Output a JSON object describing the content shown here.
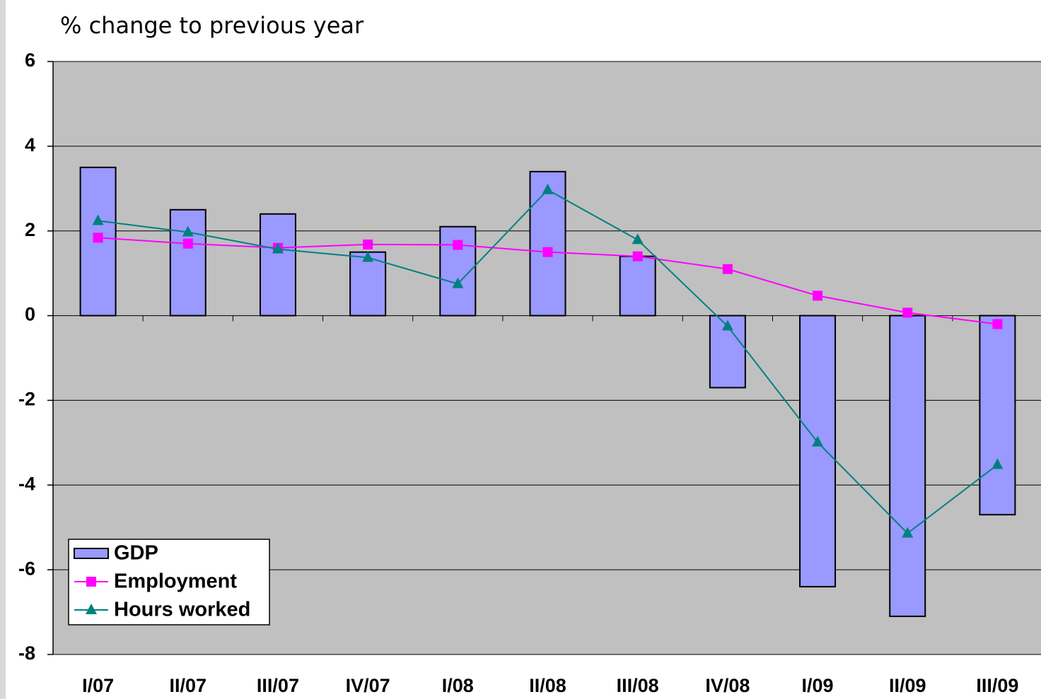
{
  "chart_data": {
    "type": "bar",
    "title": "% change to previous year",
    "categories": [
      "I/07",
      "II/07",
      "III/07",
      "IV/07",
      "I/08",
      "II/08",
      "III/08",
      "IV/08",
      "I/09",
      "II/09",
      "III/09"
    ],
    "series": [
      {
        "name": "GDP",
        "type": "bar",
        "color": "#9999ff",
        "values": [
          3.5,
          2.5,
          2.4,
          1.5,
          2.1,
          3.4,
          1.4,
          -1.7,
          -6.4,
          -7.1,
          -4.7
        ]
      },
      {
        "name": "Employment",
        "type": "line",
        "marker": "square",
        "color": "#ff00ff",
        "values": [
          1.84,
          1.7,
          1.6,
          1.68,
          1.67,
          1.5,
          1.4,
          1.1,
          0.47,
          0.07,
          -0.2
        ]
      },
      {
        "name": "Hours worked",
        "type": "line",
        "marker": "triangle",
        "color": "#008080",
        "values": [
          2.24,
          1.97,
          1.57,
          1.37,
          0.75,
          2.97,
          1.79,
          -0.25,
          -2.99,
          -5.14,
          -3.52
        ]
      }
    ],
    "ylim": [
      -8,
      6
    ],
    "yticks": [
      -8,
      -6,
      -4,
      -2,
      0,
      2,
      4,
      6
    ],
    "grid": true,
    "legend": "bottom-left"
  }
}
